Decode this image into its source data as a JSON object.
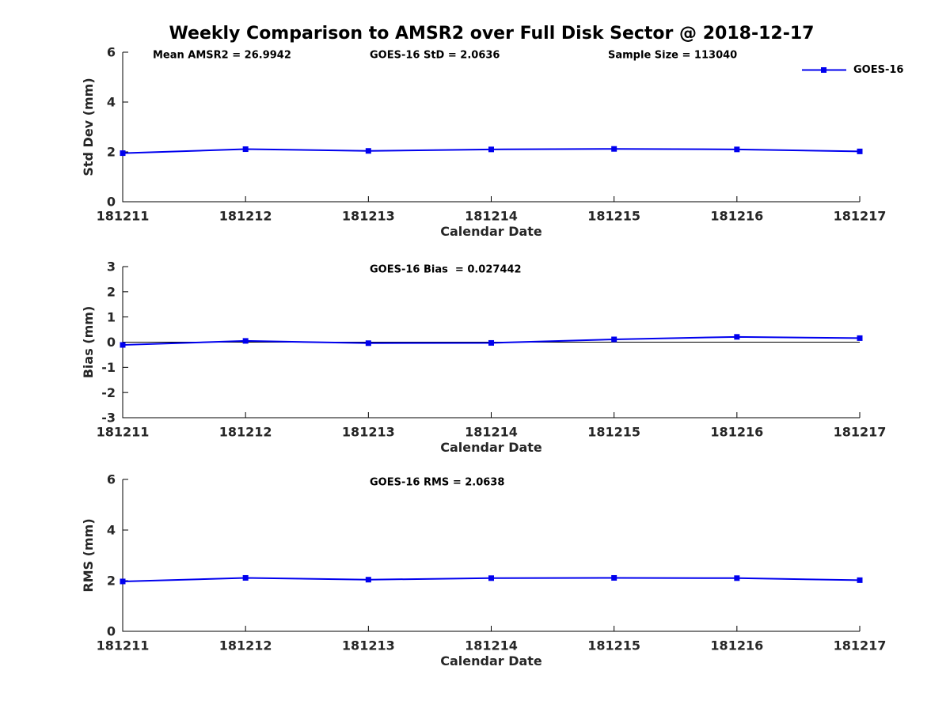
{
  "title": "Weekly Comparison to AMSR2 over Full Disk Sector @ 2018-12-17",
  "legend": {
    "label": "GOES-16",
    "marker": "square"
  },
  "colors": {
    "line": "#0000EE",
    "marker": "#0000EE",
    "axis": "#000000",
    "zero_line": "#000000",
    "tick_text": "#262626",
    "annotation_text": "#000000"
  },
  "chart_data": [
    {
      "type": "line",
      "name": "std-dev",
      "categories": [
        "181211",
        "181212",
        "181213",
        "181214",
        "181215",
        "181216",
        "181217"
      ],
      "series": [
        {
          "name": "GOES-16",
          "values": [
            1.95,
            2.11,
            2.04,
            2.1,
            2.12,
            2.1,
            2.02
          ]
        }
      ],
      "annotations": [
        "Mean AMSR2 = 26.9942",
        "GOES-16 StD = 2.0636",
        "Sample Size = 113040"
      ],
      "xlabel": "Calendar Date",
      "ylabel": "Std Dev (mm)",
      "ylim": [
        0,
        6
      ],
      "yticks": [
        0,
        2,
        4,
        6
      ],
      "zero_line": false,
      "grid": false,
      "legend_position": "top-right-outside"
    },
    {
      "type": "line",
      "name": "bias",
      "categories": [
        "181211",
        "181212",
        "181213",
        "181214",
        "181215",
        "181216",
        "181217"
      ],
      "series": [
        {
          "name": "GOES-16",
          "values": [
            -0.11,
            0.05,
            -0.04,
            -0.03,
            0.11,
            0.21,
            0.16
          ]
        }
      ],
      "annotations": [
        "GOES-16 Bias  = 0.027442"
      ],
      "xlabel": "Calendar Date",
      "ylabel": "Bias (mm)",
      "ylim": [
        -3,
        3
      ],
      "yticks": [
        -3,
        -2,
        -1,
        0,
        1,
        2,
        3
      ],
      "zero_line": true,
      "grid": false
    },
    {
      "type": "line",
      "name": "rms",
      "categories": [
        "181211",
        "181212",
        "181213",
        "181214",
        "181215",
        "181216",
        "181217"
      ],
      "series": [
        {
          "name": "GOES-16",
          "values": [
            1.97,
            2.11,
            2.04,
            2.1,
            2.11,
            2.1,
            2.02
          ]
        }
      ],
      "annotations": [
        "GOES-16 RMS = 2.0638"
      ],
      "xlabel": "Calendar Date",
      "ylabel": "RMS (mm)",
      "ylim": [
        0,
        6
      ],
      "yticks": [
        0,
        2,
        4,
        6
      ],
      "zero_line": false,
      "grid": false
    }
  ]
}
